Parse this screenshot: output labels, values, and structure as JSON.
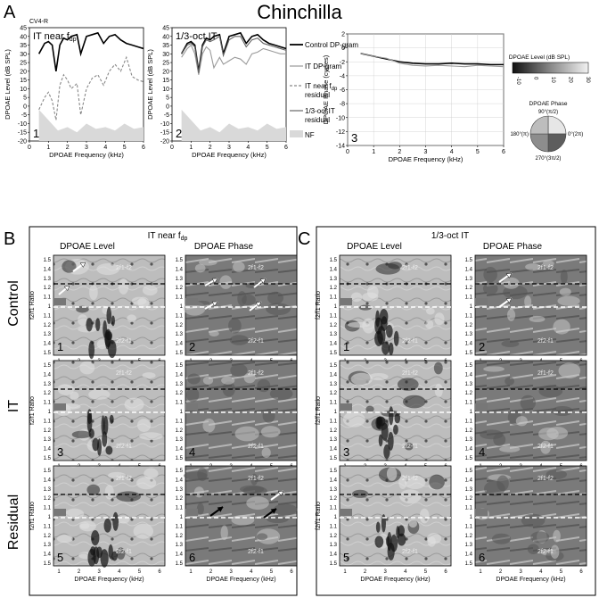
{
  "figure": {
    "letters": {
      "a": "A",
      "b": "B",
      "c": "C"
    },
    "title": "Chinchilla",
    "subject_id": "CV4-R",
    "panel_a": {
      "plot1": {
        "label": "IT near f",
        "label_sub": "dp",
        "number": "1"
      },
      "plot2": {
        "label": "1/3-oct IT",
        "number": "2"
      },
      "plot3": {
        "number": "3"
      },
      "ylabel_level": "DPOAE Level (dB SPL)",
      "ylabel_phase": "DPOAE Phase (cycles)",
      "xlabel": "DPOAE Frequency (kHz)",
      "level_ticks": [
        "45",
        "40",
        "35",
        "30",
        "25",
        "20",
        "15",
        "10",
        "5",
        "0",
        "-5",
        "-10",
        "-15",
        "-20"
      ],
      "phase_ticks": [
        "2",
        "0",
        "-2",
        "-4",
        "-6",
        "-8",
        "-10",
        "-12",
        "-14"
      ],
      "x_ticks": [
        "0",
        "1",
        "2",
        "3",
        "4",
        "5",
        "6"
      ]
    },
    "legend": {
      "control": "Control DP-gram",
      "it": "IT DP-gram",
      "it_near_1": "IT near f",
      "it_near_sub": "dp",
      "it_near_2": "residual",
      "oct_1": "1/3-oct IT",
      "oct_2": "residual",
      "nf": "NF"
    },
    "colorbar": {
      "title": "DPOAE Level (dB SPL)",
      "ticks": [
        "-10",
        "0",
        "10",
        "20",
        "30"
      ]
    },
    "phase_wheel": {
      "title": "DPOAE Phase",
      "top": "90°(π/2)",
      "left": "180°(π)",
      "right": "0°(2π)",
      "bottom": "270°(3π/2)"
    },
    "panel_b": {
      "header": "IT near f",
      "header_sub": "dp"
    },
    "panel_c": {
      "header": "1/3-oct IT"
    },
    "columns": {
      "level": "DPOAE Level",
      "phase": "DPOAE Phase"
    },
    "rows": {
      "control": "Control",
      "it": "IT",
      "residual": "Residual"
    },
    "map_ylabel": "f2/f1 Ratio",
    "map_xlabel": "DPOAE Frequency (kHz)",
    "ratio_ticks": [
      "1.5",
      "1.4",
      "1.3",
      "1.2",
      "1.1",
      "1",
      "1.1",
      "1.2",
      "1.3",
      "1.4",
      "1.5"
    ],
    "map_x_ticks": [
      "1",
      "2",
      "3",
      "4",
      "5",
      "6"
    ],
    "map_labels": {
      "upper": "2f1-f2",
      "lower": "2f2-f1",
      "upper_short": "2f2-f1",
      "lower_short": "2f1-f2"
    }
  },
  "chart_data": [
    {
      "type": "line",
      "title": "IT near fdp",
      "xlabel": "DPOAE Frequency (kHz)",
      "ylabel": "DPOAE Level (dB SPL)",
      "xlim": [
        0,
        6
      ],
      "ylim": [
        -20,
        45
      ],
      "series": [
        {
          "name": "Control DP-gram",
          "x": [
            0.5,
            0.8,
            1.0,
            1.2,
            1.4,
            1.6,
            1.8,
            2.0,
            2.2,
            2.5,
            2.7,
            3.0,
            3.3,
            3.6,
            3.9,
            4.2,
            4.5,
            4.8,
            5.1,
            5.4,
            5.7,
            6.0
          ],
          "values": [
            30,
            36,
            37,
            35,
            20,
            35,
            39,
            38,
            40,
            41,
            30,
            40,
            41,
            42,
            36,
            40,
            41,
            38,
            36,
            35,
            34,
            33
          ]
        },
        {
          "name": "IT near fdp residual",
          "x": [
            0.5,
            0.8,
            1.0,
            1.2,
            1.4,
            1.6,
            1.8,
            2.0,
            2.2,
            2.5,
            2.7,
            3.0,
            3.3,
            3.6,
            3.9,
            4.2,
            4.5,
            4.8,
            5.1,
            5.4,
            5.7,
            6.0
          ],
          "values": [
            -2,
            5,
            8,
            3,
            -8,
            12,
            18,
            15,
            10,
            13,
            -5,
            10,
            16,
            18,
            12,
            20,
            24,
            20,
            28,
            17,
            15,
            14
          ]
        },
        {
          "name": "NF",
          "x": [
            0.5,
            1.0,
            1.5,
            2.0,
            2.5,
            3.0,
            3.5,
            4.0,
            4.5,
            5.0,
            5.5,
            6.0
          ],
          "values": [
            -2,
            -8,
            -14,
            -12,
            -15,
            -10,
            -13,
            -12,
            -14,
            -10,
            -13,
            -12
          ]
        }
      ]
    },
    {
      "type": "line",
      "title": "1/3-oct IT",
      "xlabel": "DPOAE Frequency (kHz)",
      "ylabel": "DPOAE Level (dB SPL)",
      "xlim": [
        0,
        6
      ],
      "ylim": [
        -20,
        45
      ],
      "series": [
        {
          "name": "Control DP-gram",
          "x": [
            0.5,
            0.8,
            1.0,
            1.2,
            1.4,
            1.6,
            1.8,
            2.0,
            2.2,
            2.5,
            2.7,
            3.0,
            3.3,
            3.6,
            3.9,
            4.2,
            4.5,
            4.8,
            5.1,
            5.4,
            5.7,
            6.0
          ],
          "values": [
            30,
            36,
            37,
            35,
            20,
            35,
            39,
            38,
            40,
            41,
            30,
            40,
            41,
            42,
            36,
            40,
            41,
            38,
            36,
            35,
            34,
            33
          ]
        },
        {
          "name": "IT DP-gram",
          "x": [
            0.5,
            0.8,
            1.0,
            1.2,
            1.4,
            1.6,
            1.8,
            2.0,
            2.2,
            2.5,
            2.7,
            3.0,
            3.3,
            3.6,
            3.9,
            4.2,
            4.5,
            4.8,
            5.1,
            5.4,
            5.7,
            6.0
          ],
          "values": [
            28,
            33,
            35,
            30,
            18,
            30,
            34,
            32,
            22,
            28,
            24,
            26,
            28,
            27,
            24,
            30,
            31,
            33,
            32,
            31,
            30,
            30
          ]
        },
        {
          "name": "1/3-oct IT residual",
          "x": [
            0.5,
            0.8,
            1.0,
            1.2,
            1.4,
            1.6,
            1.8,
            2.0,
            2.2,
            2.5,
            2.7,
            3.0,
            3.3,
            3.6,
            3.9,
            4.2,
            4.5,
            4.8,
            5.1,
            5.4,
            5.7,
            6.0
          ],
          "values": [
            30,
            35,
            36,
            34,
            19,
            34,
            38,
            37,
            38,
            40,
            29,
            38,
            40,
            40,
            34,
            38,
            39,
            36,
            35,
            34,
            33,
            32
          ]
        },
        {
          "name": "NF",
          "x": [
            0.5,
            1.0,
            1.5,
            2.0,
            2.5,
            3.0,
            3.5,
            4.0,
            4.5,
            5.0,
            5.5,
            6.0
          ],
          "values": [
            -2,
            -8,
            -14,
            -12,
            -15,
            -10,
            -13,
            -12,
            -14,
            -10,
            -13,
            -12
          ]
        }
      ]
    },
    {
      "type": "line",
      "xlabel": "DPOAE Frequency (kHz)",
      "ylabel": "DPOAE Phase (cycles)",
      "xlim": [
        0,
        6
      ],
      "ylim": [
        -14,
        2
      ],
      "series": [
        {
          "name": "Control DP-gram",
          "x": [
            0.5,
            1.0,
            1.5,
            2.0,
            2.5,
            3.0,
            3.5,
            4.0,
            4.5,
            5.0,
            5.5,
            6.0
          ],
          "values": [
            -0.8,
            -1.2,
            -1.6,
            -2.0,
            -2.2,
            -2.3,
            -2.3,
            -2.2,
            -2.3,
            -2.3,
            -2.4,
            -2.4
          ]
        },
        {
          "name": "IT DP-gram",
          "x": [
            0.5,
            1.0,
            1.5,
            2.0,
            2.5,
            3.0,
            3.5,
            4.0,
            4.5,
            5.0,
            5.5,
            6.0
          ],
          "values": [
            -0.8,
            -1.2,
            -1.5,
            -2.2,
            -2.5,
            -2.6,
            -2.5,
            -2.6,
            -2.7,
            -2.5,
            -2.6,
            -2.7
          ]
        }
      ]
    }
  ]
}
